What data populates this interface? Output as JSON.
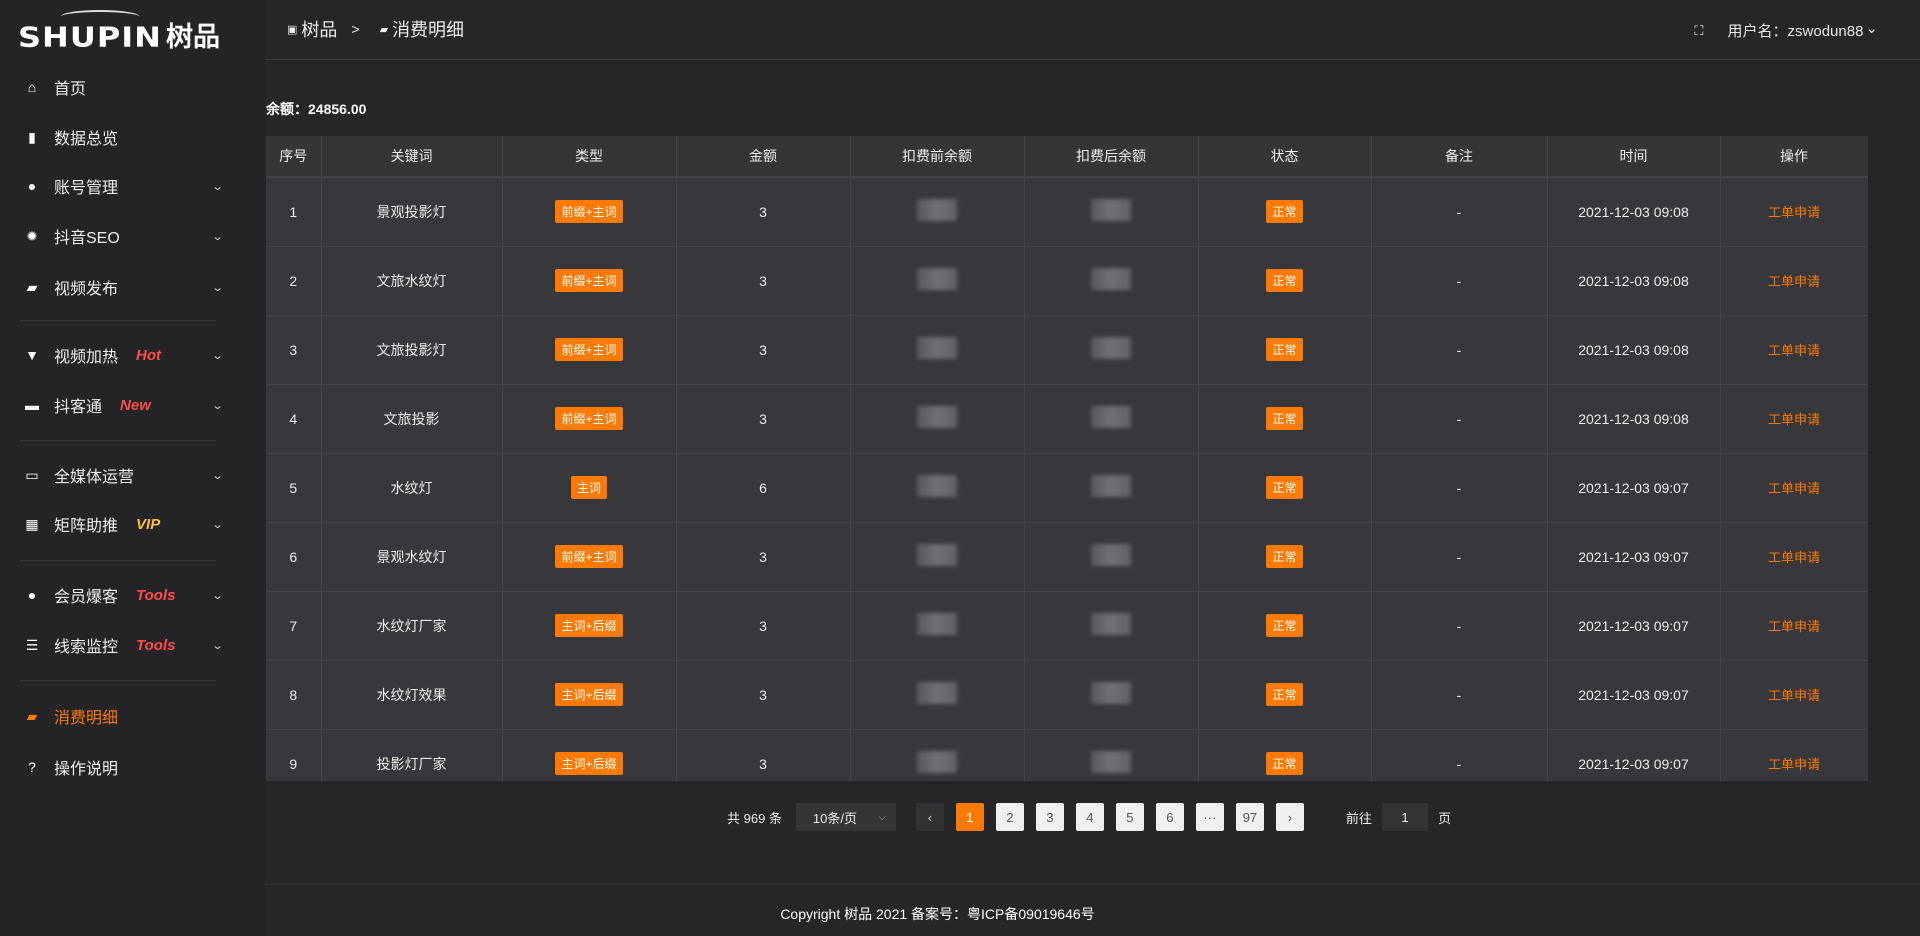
{
  "logo": {
    "en": "SHUPIN",
    "cn": "树品"
  },
  "sidebar": {
    "items": [
      {
        "label": "首页",
        "icon": "home-icon",
        "glyph": "⌂"
      },
      {
        "label": "数据总览",
        "icon": "bar-chart-icon",
        "glyph": "▮"
      },
      {
        "label": "账号管理",
        "icon": "user-icon",
        "glyph": "●",
        "chev": "⌄"
      },
      {
        "label": "抖音SEO",
        "icon": "gear-icon",
        "glyph": "✹",
        "chev": "⌄"
      },
      {
        "label": "视频发布",
        "icon": "video-icon",
        "glyph": "▰",
        "chev": "⌄"
      },
      {
        "label": "视频加热",
        "icon": "heat-icon",
        "glyph": "▼",
        "chev": "⌄",
        "tag": "Hot",
        "tag_color": "#ff4d4f"
      },
      {
        "label": "抖客通",
        "icon": "chat-icon",
        "glyph": "▬",
        "chev": "⌄",
        "tag": "New",
        "tag_color": "#ff4d4f"
      },
      {
        "label": "全媒体运营",
        "icon": "monitor-icon",
        "glyph": "▭",
        "chev": "⌄"
      },
      {
        "label": "矩阵助推",
        "icon": "grid-icon",
        "glyph": "▦",
        "chev": "⌄",
        "tag": "VIP",
        "tag_color": "#f5c242"
      },
      {
        "label": "会员爆客",
        "icon": "member-icon",
        "glyph": "●",
        "chev": "⌄",
        "tag": "Tools",
        "tag_color": "#ff4d4f"
      },
      {
        "label": "线索监控",
        "icon": "sliders-icon",
        "glyph": "☰",
        "chev": "⌄",
        "tag": "Tools",
        "tag_color": "#ff4d4f"
      },
      {
        "label": "消费明细",
        "icon": "wallet-icon",
        "glyph": "▰",
        "active": true
      },
      {
        "label": "操作说明",
        "icon": "help-icon",
        "glyph": "?"
      }
    ]
  },
  "header": {
    "breadcrumb": [
      "树品",
      "消费明细"
    ],
    "separator": ">",
    "user_label": "用户名：zswodun88",
    "chev": "⌄"
  },
  "balance": "余额：24856.00",
  "accent": "#ff7a00",
  "table": {
    "columns": [
      "序号",
      "关键词",
      "类型",
      "金额",
      "扣费前余额",
      "扣费后余额",
      "状态",
      "备注",
      "时间",
      "操作"
    ],
    "rows": [
      {
        "no": "1",
        "keyword": "景观投影灯",
        "type": "前缀+主词",
        "amount": "3",
        "status": "正常",
        "note": "-",
        "time": "2021-12-03 09:08",
        "action": "工单申请"
      },
      {
        "no": "2",
        "keyword": "文旅水纹灯",
        "type": "前缀+主词",
        "amount": "3",
        "status": "正常",
        "note": "-",
        "time": "2021-12-03 09:08",
        "action": "工单申请"
      },
      {
        "no": "3",
        "keyword": "文旅投影灯",
        "type": "前缀+主词",
        "amount": "3",
        "status": "正常",
        "note": "-",
        "time": "2021-12-03 09:08",
        "action": "工单申请"
      },
      {
        "no": "4",
        "keyword": "文旅投影",
        "type": "前缀+主词",
        "amount": "3",
        "status": "正常",
        "note": "-",
        "time": "2021-12-03 09:08",
        "action": "工单申请"
      },
      {
        "no": "5",
        "keyword": "水纹灯",
        "type": "主词",
        "amount": "6",
        "status": "正常",
        "note": "-",
        "time": "2021-12-03 09:07",
        "action": "工单申请"
      },
      {
        "no": "6",
        "keyword": "景观水纹灯",
        "type": "前缀+主词",
        "amount": "3",
        "status": "正常",
        "note": "-",
        "time": "2021-12-03 09:07",
        "action": "工单申请"
      },
      {
        "no": "7",
        "keyword": "水纹灯厂家",
        "type": "主词+后缀",
        "amount": "3",
        "status": "正常",
        "note": "-",
        "time": "2021-12-03 09:07",
        "action": "工单申请"
      },
      {
        "no": "8",
        "keyword": "水纹灯效果",
        "type": "主词+后缀",
        "amount": "3",
        "status": "正常",
        "note": "-",
        "time": "2021-12-03 09:07",
        "action": "工单申请"
      },
      {
        "no": "9",
        "keyword": "投影灯厂家",
        "type": "主词+后缀",
        "amount": "3",
        "status": "正常",
        "note": "-",
        "time": "2021-12-03 09:07",
        "action": "工单申请"
      }
    ]
  },
  "pagination": {
    "total": "共 969 条",
    "page_size": "10条/页",
    "pages": [
      "1",
      "2",
      "3",
      "4",
      "5",
      "6",
      "···",
      "97"
    ],
    "current": "1",
    "prev": "‹",
    "next": "›",
    "goto_label": "前往",
    "goto_value": "1",
    "page_suffix": "页"
  },
  "footer": "Copyright 树品 2021 备案号：粤ICP备09019646号"
}
